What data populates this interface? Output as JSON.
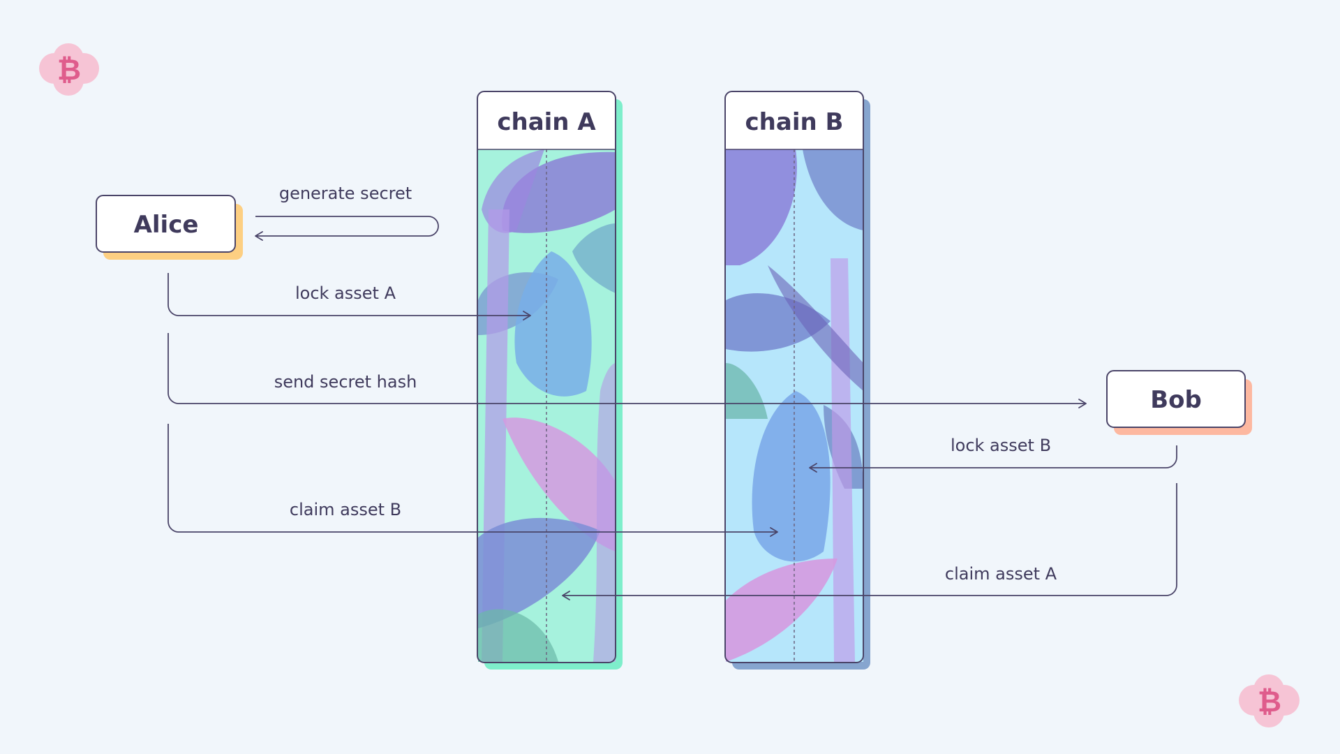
{
  "actors": {
    "alice": "Alice",
    "bob": "Bob"
  },
  "chains": {
    "a": "chain A",
    "b": "chain B"
  },
  "steps": {
    "generate_secret": "generate secret",
    "lock_asset_a": "lock asset A",
    "send_secret_hash": "send secret hash",
    "lock_asset_b": "lock asset B",
    "claim_asset_b": "claim asset B",
    "claim_asset_a": "claim asset A"
  },
  "badge": {
    "glyph": "₿",
    "icon": "bitcoin-icon"
  },
  "colors": {
    "background": "#f1f6fb",
    "ink": "#3f3a5c",
    "alice_shadow": "#fdcf82",
    "bob_shadow": "#fdb8a0",
    "chain_a_shadow": "#7eeecb",
    "chain_b_shadow": "#86a5cf",
    "badge_pink": "#f6c4d5",
    "badge_glyph": "#df5c8c"
  }
}
